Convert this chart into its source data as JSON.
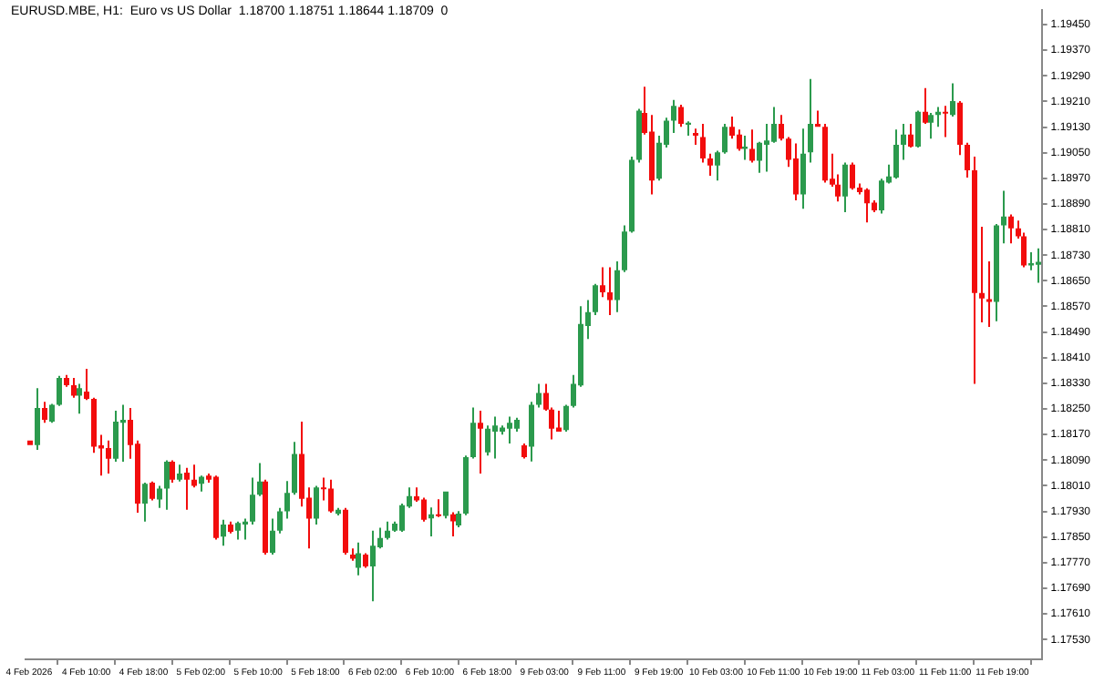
{
  "chart_data": {
    "type": "candlestick",
    "title": "EURUSD.MBE, H1:  Euro vs US Dollar  1.18700 1.18751 1.18644 1.18709  0",
    "categories": [
      "4 Feb 2026",
      null,
      null,
      null,
      null,
      null,
      null,
      null,
      "4 Feb 10:00",
      null,
      null,
      null,
      null,
      null,
      null,
      null,
      "4 Feb 18:00",
      null,
      null,
      null,
      null,
      null,
      null,
      null,
      "5 Feb 02:00",
      null,
      null,
      null,
      null,
      null,
      null,
      null,
      "5 Feb 10:00",
      null,
      null,
      null,
      null,
      null,
      null,
      null,
      "5 Feb 18:00",
      null,
      null,
      null,
      null,
      null,
      null,
      null,
      "6 Feb 02:00",
      null,
      null,
      null,
      null,
      null,
      null,
      null,
      "6 Feb 10:00",
      null,
      null,
      null,
      null,
      null,
      null,
      null,
      "6 Feb 18:00",
      null,
      null,
      null,
      null,
      null,
      null,
      null,
      "9 Feb 03:00",
      null,
      null,
      null,
      null,
      null,
      null,
      null,
      "9 Feb 11:00",
      null,
      null,
      null,
      null,
      null,
      null,
      null,
      "9 Feb 19:00",
      null,
      null,
      null,
      null,
      null,
      null,
      null,
      "10 Feb 03:00",
      null,
      null,
      null,
      null,
      null,
      null,
      null,
      "10 Feb 11:00",
      null,
      null,
      null,
      null,
      null,
      null,
      null,
      "10 Feb 19:00",
      null,
      null,
      null,
      null,
      null,
      null,
      null,
      "11 Feb 03:00",
      null,
      null,
      null,
      null,
      null,
      null,
      null,
      "11 Feb 11:00",
      null,
      null,
      null,
      null,
      null,
      null,
      null,
      "11 Feb 19:00",
      null,
      null,
      null,
      null,
      null
    ],
    "ohlc": [
      [
        1.18151,
        1.18151,
        1.18137,
        1.18137
      ],
      [
        1.18137,
        1.18315,
        1.18122,
        1.18253
      ],
      [
        1.18253,
        1.18272,
        1.18207,
        1.18216
      ],
      [
        1.1821,
        1.18266,
        1.18207,
        1.18263
      ],
      [
        1.18263,
        1.18353,
        1.18259,
        1.18347
      ],
      [
        1.18347,
        1.18356,
        1.18319,
        1.18324
      ],
      [
        1.18324,
        1.18347,
        1.18285,
        1.18291
      ],
      [
        1.18291,
        1.18328,
        1.18235,
        1.18315
      ],
      [
        1.18304,
        1.18375,
        1.18278,
        1.18281
      ],
      [
        1.18281,
        1.18285,
        1.18113,
        1.18132
      ],
      [
        1.18136,
        1.18169,
        1.18042,
        1.18126
      ],
      [
        1.18128,
        1.18151,
        1.18048,
        1.18094
      ],
      [
        1.18094,
        1.18244,
        1.18085,
        1.1821
      ],
      [
        1.18207,
        1.18263,
        1.18085,
        1.18216
      ],
      [
        1.18216,
        1.18253,
        1.18094,
        1.18137
      ],
      [
        1.18141,
        1.18151,
        1.17926,
        1.17954
      ],
      [
        1.17954,
        1.1802,
        1.17898,
        1.18016
      ],
      [
        1.1802,
        1.18023,
        1.17964,
        1.17969
      ],
      [
        1.17967,
        1.1801,
        1.17941,
        1.18001
      ],
      [
        1.18001,
        1.18089,
        1.17935,
        1.18085
      ],
      [
        1.18085,
        1.18089,
        1.1802,
        1.18029
      ],
      [
        1.18029,
        1.18076,
        1.18023,
        1.18048
      ],
      [
        1.18051,
        1.18066,
        1.17935,
        1.18029
      ],
      [
        1.18029,
        1.18076,
        1.18005,
        1.1801
      ],
      [
        1.18016,
        1.18042,
        1.17992,
        1.18038
      ],
      [
        1.18042,
        1.18048,
        1.1802,
        1.18029
      ],
      [
        1.18038,
        1.18042,
        1.17842,
        1.17847
      ],
      [
        1.17851,
        1.17904,
        1.17823,
        1.17889
      ],
      [
        1.17889,
        1.17898,
        1.17861,
        1.17866
      ],
      [
        1.1787,
        1.17898,
        1.17842,
        1.17894
      ],
      [
        1.17889,
        1.17907,
        1.17842,
        1.17898
      ],
      [
        1.17898,
        1.18035,
        1.17889,
        1.17982
      ],
      [
        1.17982,
        1.18081,
        1.17978,
        1.18023
      ],
      [
        1.18023,
        1.18029,
        1.17795,
        1.17801
      ],
      [
        1.17801,
        1.17907,
        1.17795,
        1.1787
      ],
      [
        1.1787,
        1.17941,
        1.17861,
        1.1793
      ],
      [
        1.1793,
        1.18025,
        1.17907,
        1.17988
      ],
      [
        1.17988,
        1.18147,
        1.17982,
        1.18109
      ],
      [
        1.18109,
        1.1821,
        1.17945,
        1.17969
      ],
      [
        1.17973,
        1.18005,
        1.17814,
        1.17907
      ],
      [
        1.17907,
        1.1801,
        1.17889,
        1.18005
      ],
      [
        1.18005,
        1.18035,
        1.17964,
        1.18001
      ],
      [
        1.18001,
        1.18029,
        1.17926,
        1.1793
      ],
      [
        1.17922,
        1.17941,
        1.17917,
        1.17935
      ],
      [
        1.17935,
        1.17941,
        1.17795,
        1.17801
      ],
      [
        1.17795,
        1.17814,
        1.17776,
        1.17782
      ],
      [
        1.17754,
        1.17833,
        1.1773,
        1.17799
      ],
      [
        1.17795,
        1.17799,
        1.17754,
        1.17758
      ],
      [
        1.17758,
        1.1787,
        1.17649,
        1.17823
      ],
      [
        1.17818,
        1.17879,
        1.17814,
        1.17847
      ],
      [
        1.17847,
        1.17898,
        1.17842,
        1.1787
      ],
      [
        1.1787,
        1.17898,
        1.17866,
        1.17892
      ],
      [
        1.1787,
        1.17954,
        1.17866,
        1.17949
      ],
      [
        1.17945,
        1.18005,
        1.17941,
        1.17978
      ],
      [
        1.17977,
        1.18005,
        1.1796,
        1.17964
      ],
      [
        1.17967,
        1.17973,
        1.17898,
        1.17904
      ],
      [
        1.17908,
        1.17942,
        1.17852,
        1.17921
      ],
      [
        1.17921,
        1.17968,
        1.17912,
        1.17916
      ],
      [
        1.17916,
        1.17992,
        1.17908,
        1.17992
      ],
      [
        1.17921,
        1.17927,
        1.17852,
        1.17899
      ],
      [
        1.17886,
        1.17931,
        1.1788,
        1.17923
      ],
      [
        1.17923,
        1.18104,
        1.17918,
        1.18099
      ],
      [
        1.18099,
        1.18254,
        1.18095,
        1.18207
      ],
      [
        1.18207,
        1.18244,
        1.18048,
        1.18188
      ],
      [
        1.18114,
        1.18198,
        1.18104,
        1.18188
      ],
      [
        1.18179,
        1.18226,
        1.18095,
        1.18198
      ],
      [
        1.18179,
        1.18198,
        1.1817,
        1.18192
      ],
      [
        1.18188,
        1.18226,
        1.18142,
        1.18207
      ],
      [
        1.18188,
        1.18222,
        1.18179,
        1.18216
      ],
      [
        1.18136,
        1.18142,
        1.18095,
        1.18099
      ],
      [
        1.18132,
        1.18272,
        1.18086,
        1.18263
      ],
      [
        1.18263,
        1.18328,
        1.18254,
        1.183
      ],
      [
        1.183,
        1.18328,
        1.18244,
        1.18248
      ],
      [
        1.18248,
        1.18254,
        1.18155,
        1.18188
      ],
      [
        1.18192,
        1.18244,
        1.18179,
        1.18179
      ],
      [
        1.18184,
        1.18263,
        1.18179,
        1.18259
      ],
      [
        1.18259,
        1.18356,
        1.18254,
        1.18328
      ],
      [
        1.18323,
        1.18571,
        1.18319,
        1.18515
      ],
      [
        1.18509,
        1.1859,
        1.18468,
        1.18552
      ],
      [
        1.18552,
        1.1864,
        1.18543,
        1.18636
      ],
      [
        1.18636,
        1.18692,
        1.18599,
        1.18614
      ],
      [
        1.18614,
        1.18692,
        1.18543,
        1.1859
      ],
      [
        1.1859,
        1.18711,
        1.18552,
        1.18683
      ],
      [
        1.18683,
        1.18823,
        1.18677,
        1.18804
      ],
      [
        1.18804,
        1.19038,
        1.188,
        1.19028
      ],
      [
        1.19028,
        1.19187,
        1.19019,
        1.19181
      ],
      [
        1.19174,
        1.19256,
        1.19107,
        1.19112
      ],
      [
        1.19116,
        1.19168,
        1.1892,
        1.18963
      ],
      [
        1.18969,
        1.19103,
        1.18963,
        1.19081
      ],
      [
        1.19075,
        1.19159,
        1.19066,
        1.1915
      ],
      [
        1.1915,
        1.19215,
        1.19112,
        1.19196
      ],
      [
        1.19193,
        1.192,
        1.19131,
        1.1914
      ],
      [
        1.19137,
        1.19148,
        1.19103,
        1.19144
      ],
      [
        1.19112,
        1.19125,
        1.19075,
        1.19103
      ],
      [
        1.19099,
        1.1914,
        1.19019,
        1.19032
      ],
      [
        1.19032,
        1.19047,
        1.18978,
        1.1901
      ],
      [
        1.1901,
        1.19056,
        1.18963,
        1.19051
      ],
      [
        1.19051,
        1.1914,
        1.19047,
        1.19131
      ],
      [
        1.19131,
        1.19163,
        1.19094,
        1.19103
      ],
      [
        1.19107,
        1.19122,
        1.19056,
        1.19062
      ],
      [
        1.19062,
        1.19103,
        1.19028,
        1.19069
      ],
      [
        1.19062,
        1.19122,
        1.19019,
        1.19025
      ],
      [
        1.19025,
        1.19084,
        1.18987,
        1.19081
      ],
      [
        1.19075,
        1.1914,
        1.18991,
        1.19088
      ],
      [
        1.19084,
        1.19193,
        1.19081,
        1.1914
      ],
      [
        1.1914,
        1.19168,
        1.19088,
        1.19094
      ],
      [
        1.19094,
        1.19099,
        1.19006,
        1.19028
      ],
      [
        1.19032,
        1.19079,
        1.18901,
        1.1892
      ],
      [
        1.1892,
        1.19125,
        1.18875,
        1.19047
      ],
      [
        1.19051,
        1.1928,
        1.19019,
        1.1914
      ],
      [
        1.1914,
        1.19181,
        1.19131,
        1.19131
      ],
      [
        1.19131,
        1.1914,
        1.18957,
        1.18963
      ],
      [
        1.18969,
        1.19047,
        1.18944,
        1.1895
      ],
      [
        1.1895,
        1.18982,
        1.18898,
        1.18913
      ],
      [
        1.18913,
        1.19019,
        1.18864,
        1.19013
      ],
      [
        1.19013,
        1.19019,
        1.18935,
        1.18939
      ],
      [
        1.18941,
        1.18954,
        1.1892,
        1.18927
      ],
      [
        1.18935,
        1.18939,
        1.18832,
        1.18892
      ],
      [
        1.18894,
        1.18901,
        1.18864,
        1.1887
      ],
      [
        1.1887,
        1.18969,
        1.1886,
        1.18963
      ],
      [
        1.18957,
        1.19013,
        1.18954,
        1.18976
      ],
      [
        1.18972,
        1.19122,
        1.18969,
        1.19075
      ],
      [
        1.19075,
        1.1914,
        1.19028,
        1.19107
      ],
      [
        1.19107,
        1.1914,
        1.19066,
        1.19069
      ],
      [
        1.19069,
        1.19181,
        1.19066,
        1.19178
      ],
      [
        1.19178,
        1.19252,
        1.1914,
        1.19144
      ],
      [
        1.19144,
        1.19174,
        1.19094,
        1.19168
      ],
      [
        1.19168,
        1.19193,
        1.19131,
        1.19178
      ],
      [
        1.19178,
        1.19196,
        1.19099,
        1.19174
      ],
      [
        1.19168,
        1.19267,
        1.19163,
        1.19211
      ],
      [
        1.19206,
        1.19211,
        1.19043,
        1.19075
      ],
      [
        1.19075,
        1.19081,
        1.18972,
        1.18995
      ],
      [
        1.18995,
        1.19038,
        1.18328,
        1.18612
      ],
      [
        1.18612,
        1.18819,
        1.1852,
        1.18595
      ],
      [
        1.18593,
        1.18711,
        1.18506,
        1.18584
      ],
      [
        1.18584,
        1.18827,
        1.18524,
        1.18823
      ],
      [
        1.18823,
        1.18931,
        1.18767,
        1.18851
      ],
      [
        1.18851,
        1.18857,
        1.18767,
        1.18814
      ],
      [
        1.18814,
        1.18838,
        1.18782,
        1.18789
      ],
      [
        1.18789,
        1.188,
        1.18692,
        1.18698
      ],
      [
        1.18698,
        1.18739,
        1.18683,
        1.18705
      ],
      [
        1.187,
        1.18751,
        1.18644,
        1.18709
      ]
    ],
    "colors": [
      "#f20d0d",
      "#2b9a4d",
      "#f20d0d",
      "#2b9a4d",
      "#2b9a4d",
      "#f20d0d",
      "#f20d0d",
      "#2b9a4d",
      "#f20d0d",
      "#f20d0d",
      "#f20d0d",
      "#f20d0d",
      "#2b9a4d",
      "#2b9a4d",
      "#f20d0d",
      "#f20d0d",
      "#2b9a4d",
      "#f20d0d",
      "#2b9a4d",
      "#2b9a4d",
      "#f20d0d",
      "#2b9a4d",
      "#f20d0d",
      "#f20d0d",
      "#2b9a4d",
      "#f20d0d",
      "#f20d0d",
      "#2b9a4d",
      "#f20d0d",
      "#2b9a4d",
      "#2b9a4d",
      "#2b9a4d",
      "#2b9a4d",
      "#f20d0d",
      "#2b9a4d",
      "#2b9a4d",
      "#2b9a4d",
      "#2b9a4d",
      "#f20d0d",
      "#f20d0d",
      "#2b9a4d",
      "#f20d0d",
      "#f20d0d",
      "#2b9a4d",
      "#f20d0d",
      "#f20d0d",
      "#2b9a4d",
      "#f20d0d",
      "#2b9a4d",
      "#2b9a4d",
      "#2b9a4d",
      "#2b9a4d",
      "#2b9a4d",
      "#2b9a4d",
      "#f20d0d",
      "#f20d0d",
      "#2b9a4d",
      "#f20d0d",
      "#2b9a4d",
      "#f20d0d",
      "#2b9a4d",
      "#2b9a4d",
      "#2b9a4d",
      "#f20d0d",
      "#2b9a4d",
      "#2b9a4d",
      "#2b9a4d",
      "#2b9a4d",
      "#2b9a4d",
      "#f20d0d",
      "#2b9a4d",
      "#2b9a4d",
      "#f20d0d",
      "#f20d0d",
      "#f20d0d",
      "#2b9a4d",
      "#2b9a4d",
      "#2b9a4d",
      "#2b9a4d",
      "#2b9a4d",
      "#f20d0d",
      "#f20d0d",
      "#2b9a4d",
      "#2b9a4d",
      "#2b9a4d",
      "#2b9a4d",
      "#f20d0d",
      "#f20d0d",
      "#2b9a4d",
      "#2b9a4d",
      "#2b9a4d",
      "#f20d0d",
      "#2b9a4d",
      "#f20d0d",
      "#f20d0d",
      "#f20d0d",
      "#2b9a4d",
      "#2b9a4d",
      "#f20d0d",
      "#f20d0d",
      "#2b9a4d",
      "#f20d0d",
      "#2b9a4d",
      "#2b9a4d",
      "#2b9a4d",
      "#f20d0d",
      "#f20d0d",
      "#f20d0d",
      "#2b9a4d",
      "#2b9a4d",
      "#f20d0d",
      "#f20d0d",
      "#f20d0d",
      "#f20d0d",
      "#2b9a4d",
      "#f20d0d",
      "#f20d0d",
      "#f20d0d",
      "#f20d0d",
      "#2b9a4d",
      "#2b9a4d",
      "#2b9a4d",
      "#2b9a4d",
      "#f20d0d",
      "#2b9a4d",
      "#f20d0d",
      "#2b9a4d",
      "#2b9a4d",
      "#f20d0d",
      "#2b9a4d",
      "#f20d0d",
      "#f20d0d",
      "#f20d0d",
      "#f20d0d",
      "#f20d0d",
      "#2b9a4d",
      "#2b9a4d",
      "#f20d0d",
      "#f20d0d",
      "#f20d0d",
      "#2b9a4d",
      "#2b9a4d"
    ],
    "ylim": [
      1.17468,
      1.19495
    ],
    "yticks": [
      {
        "value": 1.1753,
        "label": "1.17530"
      },
      {
        "value": 1.1761,
        "label": "1.17610"
      },
      {
        "value": 1.1769,
        "label": "1.17690"
      },
      {
        "value": 1.1777,
        "label": "1.17770"
      },
      {
        "value": 1.1785,
        "label": "1.17850"
      },
      {
        "value": 1.1793,
        "label": "1.17930"
      },
      {
        "value": 1.1801,
        "label": "1.18010"
      },
      {
        "value": 1.1809,
        "label": "1.18090"
      },
      {
        "value": 1.1817,
        "label": "1.18170"
      },
      {
        "value": 1.1825,
        "label": "1.18250"
      },
      {
        "value": 1.1833,
        "label": "1.18330"
      },
      {
        "value": 1.1841,
        "label": "1.18410"
      },
      {
        "value": 1.1849,
        "label": "1.18490"
      },
      {
        "value": 1.1857,
        "label": "1.18570"
      },
      {
        "value": 1.1865,
        "label": "1.18650"
      },
      {
        "value": 1.1873,
        "label": "1.18730"
      },
      {
        "value": 1.1881,
        "label": "1.18810"
      },
      {
        "value": 1.1889,
        "label": "1.18890"
      },
      {
        "value": 1.1897,
        "label": "1.18970"
      },
      {
        "value": 1.1905,
        "label": "1.19050"
      },
      {
        "value": 1.1913,
        "label": "1.19130"
      },
      {
        "value": 1.1921,
        "label": "1.19210"
      },
      {
        "value": 1.1929,
        "label": "1.19290"
      },
      {
        "value": 1.1937,
        "label": "1.19370"
      },
      {
        "value": 1.1945,
        "label": "1.19450"
      }
    ]
  }
}
